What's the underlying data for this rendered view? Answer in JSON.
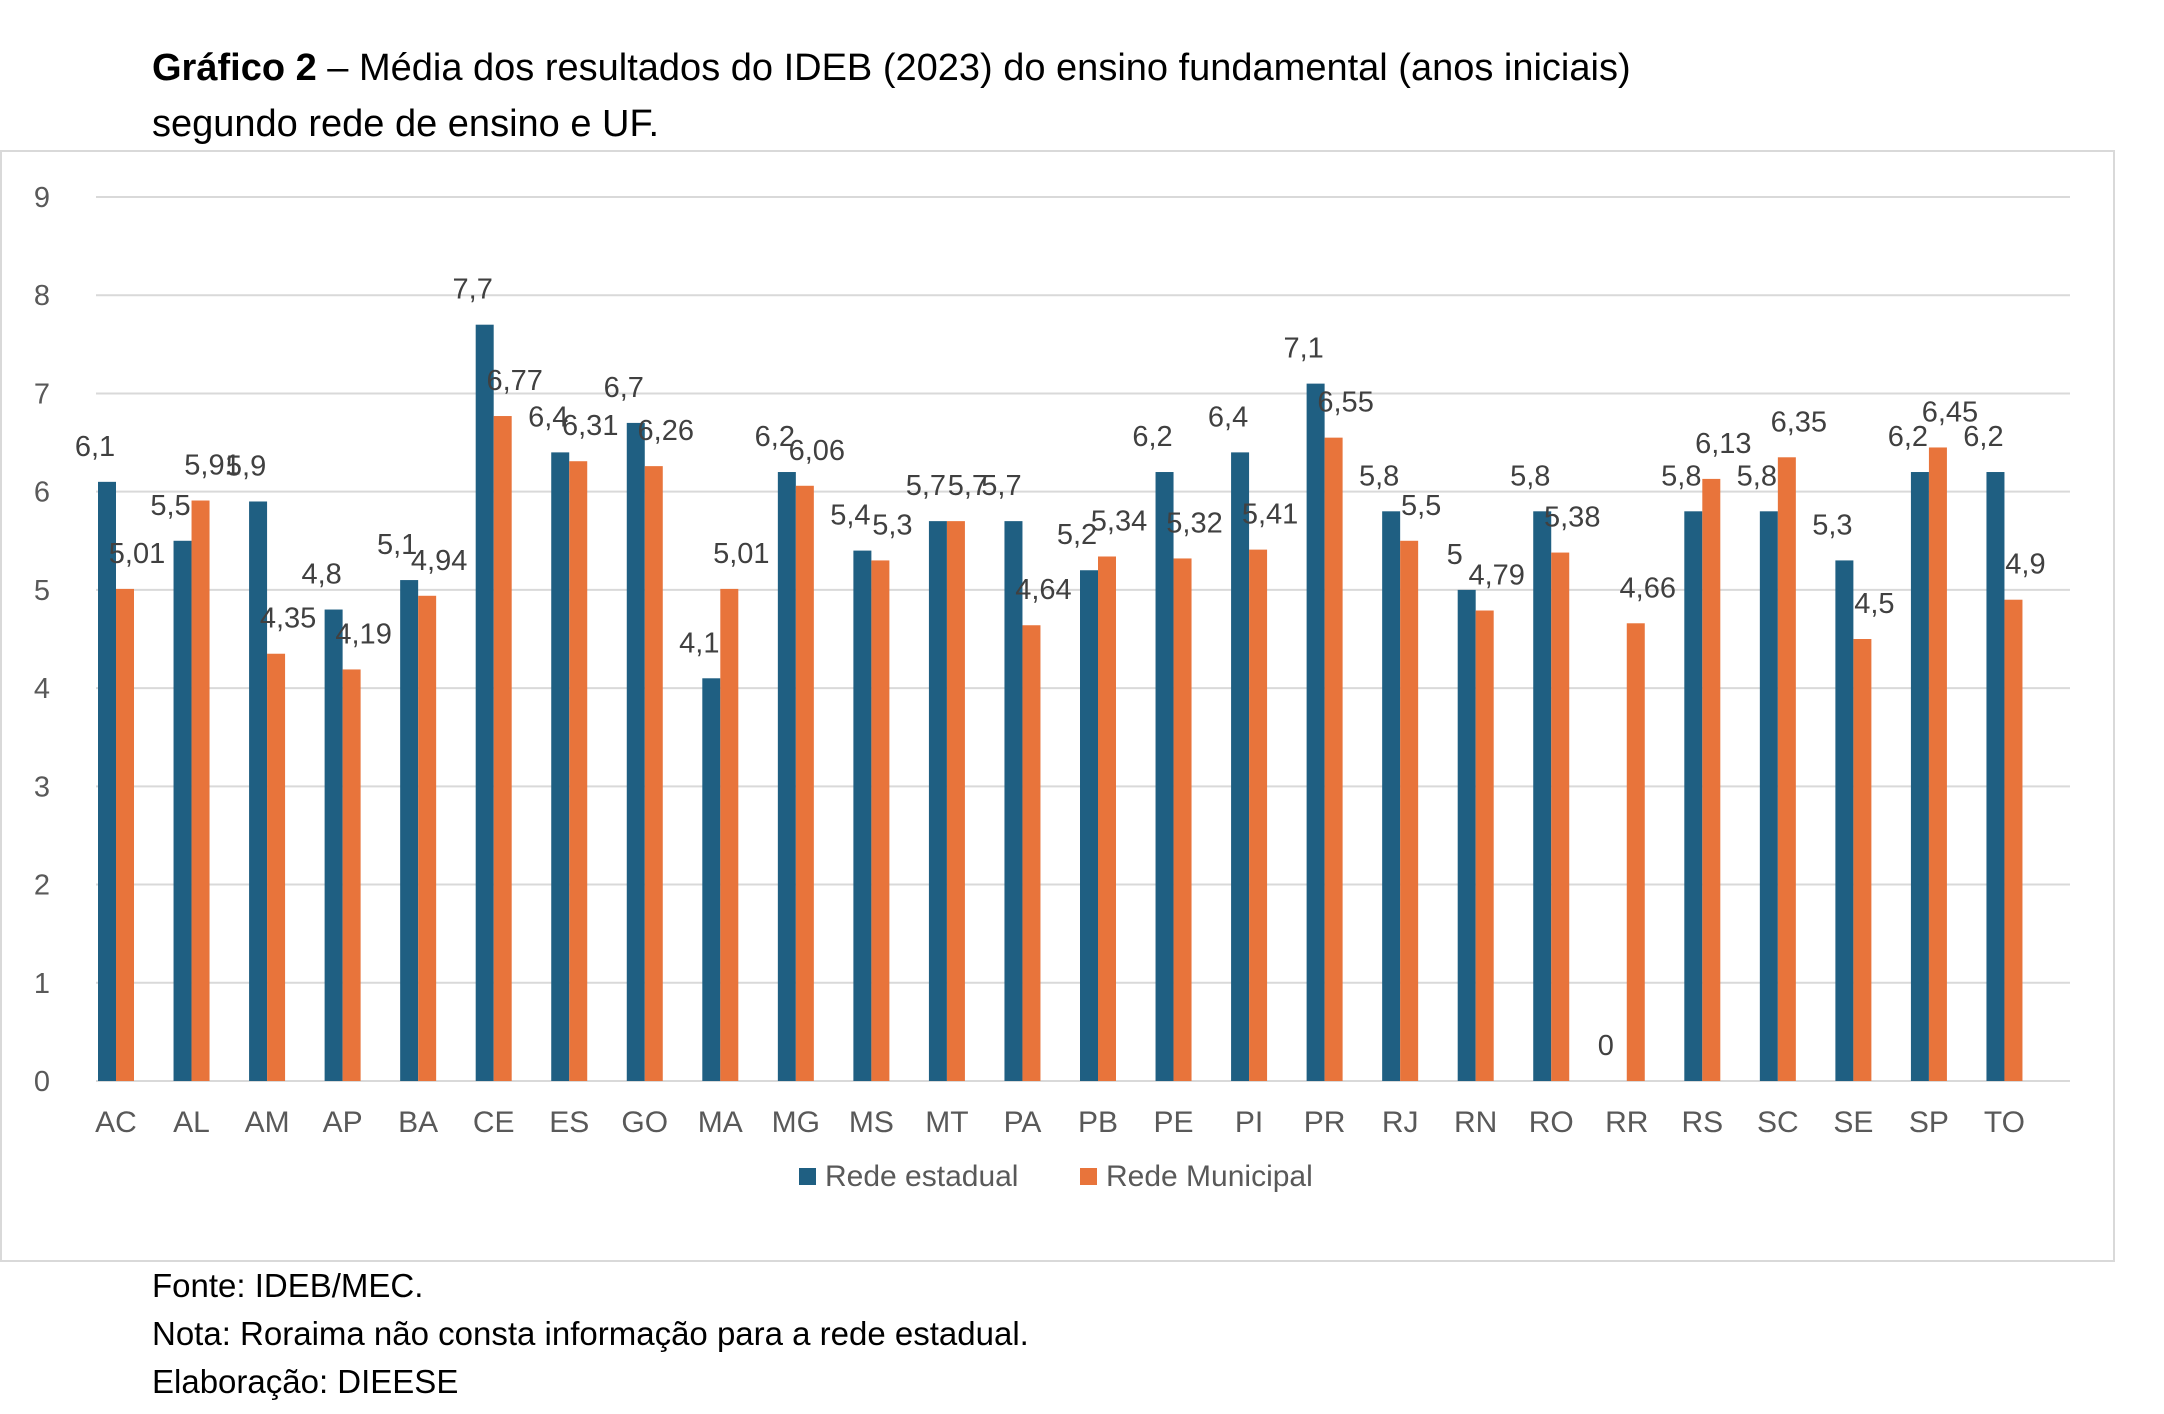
{
  "title": {
    "bold": "Gráfico 2",
    "rest": " – Média dos resultados do IDEB (2023) do ensino fundamental (anos iniciais)",
    "line2": "segundo rede de ensino e UF."
  },
  "footer": {
    "source": "Fonte: IDEB/MEC.",
    "note": "Nota: Roraima não consta informação para a rede estadual.",
    "author": "Elaboração: DIEESE"
  },
  "colors": {
    "estadual": "#1f5f82",
    "municipal": "#e8743b",
    "grid": "#d9d9d9"
  },
  "chart_data": {
    "type": "bar",
    "title": "Média dos resultados do IDEB (2023) do ensino fundamental (anos iniciais) segundo rede de ensino e UF.",
    "xlabel": "",
    "ylabel": "",
    "ylim": [
      0,
      9
    ],
    "yticks": [
      "0",
      "1",
      "2",
      "3",
      "4",
      "5",
      "6",
      "7",
      "8",
      "9"
    ],
    "grid": true,
    "legend_position": "bottom",
    "categories": [
      "AC",
      "AL",
      "AM",
      "AP",
      "BA",
      "CE",
      "ES",
      "GO",
      "MA",
      "MG",
      "MS",
      "MT",
      "PA",
      "PB",
      "PE",
      "PI",
      "PR",
      "RJ",
      "RN",
      "RO",
      "RR",
      "RS",
      "SC",
      "SE",
      "SP",
      "TO"
    ],
    "series": [
      {
        "name": "Rede estadual",
        "values": [
          6.1,
          5.5,
          5.9,
          4.8,
          5.1,
          7.7,
          6.4,
          6.7,
          4.1,
          6.2,
          5.4,
          5.7,
          5.7,
          5.2,
          6.2,
          6.4,
          7.1,
          5.8,
          5,
          5.8,
          0,
          5.8,
          5.8,
          5.3,
          6.2,
          6.2
        ],
        "labels": [
          "6,1",
          "5,5",
          "5,9",
          "4,8",
          "5,1",
          "7,7",
          "6,4",
          "6,7",
          "4,1",
          "6,2",
          "5,4",
          "5,7",
          "5,7",
          "5,2",
          "6,2",
          "6,4",
          "7,1",
          "5,8",
          "5",
          "5,8",
          "0",
          "5,8",
          "5,8",
          "5,3",
          "6,2",
          "6,2"
        ]
      },
      {
        "name": "Rede Municipal",
        "values": [
          5.01,
          5.91,
          4.35,
          4.19,
          4.94,
          6.77,
          6.31,
          6.26,
          5.01,
          6.06,
          5.3,
          5.7,
          4.64,
          5.34,
          5.32,
          5.41,
          6.55,
          5.5,
          4.79,
          5.38,
          4.66,
          6.13,
          6.35,
          4.5,
          6.45,
          4.9
        ],
        "labels": [
          "5,01",
          "5,91",
          "4,35",
          "4,19",
          "4,94",
          "6,77",
          "6,31",
          "6,26",
          "5,01",
          "6,06",
          "5,3",
          "5,7",
          "4,64",
          "5,34",
          "5,32",
          "5,41",
          "6,55",
          "5,5",
          "4,79",
          "5,38",
          "4,66",
          "6,13",
          "6,35",
          "4,5",
          "6,45",
          "4,9"
        ]
      }
    ]
  }
}
